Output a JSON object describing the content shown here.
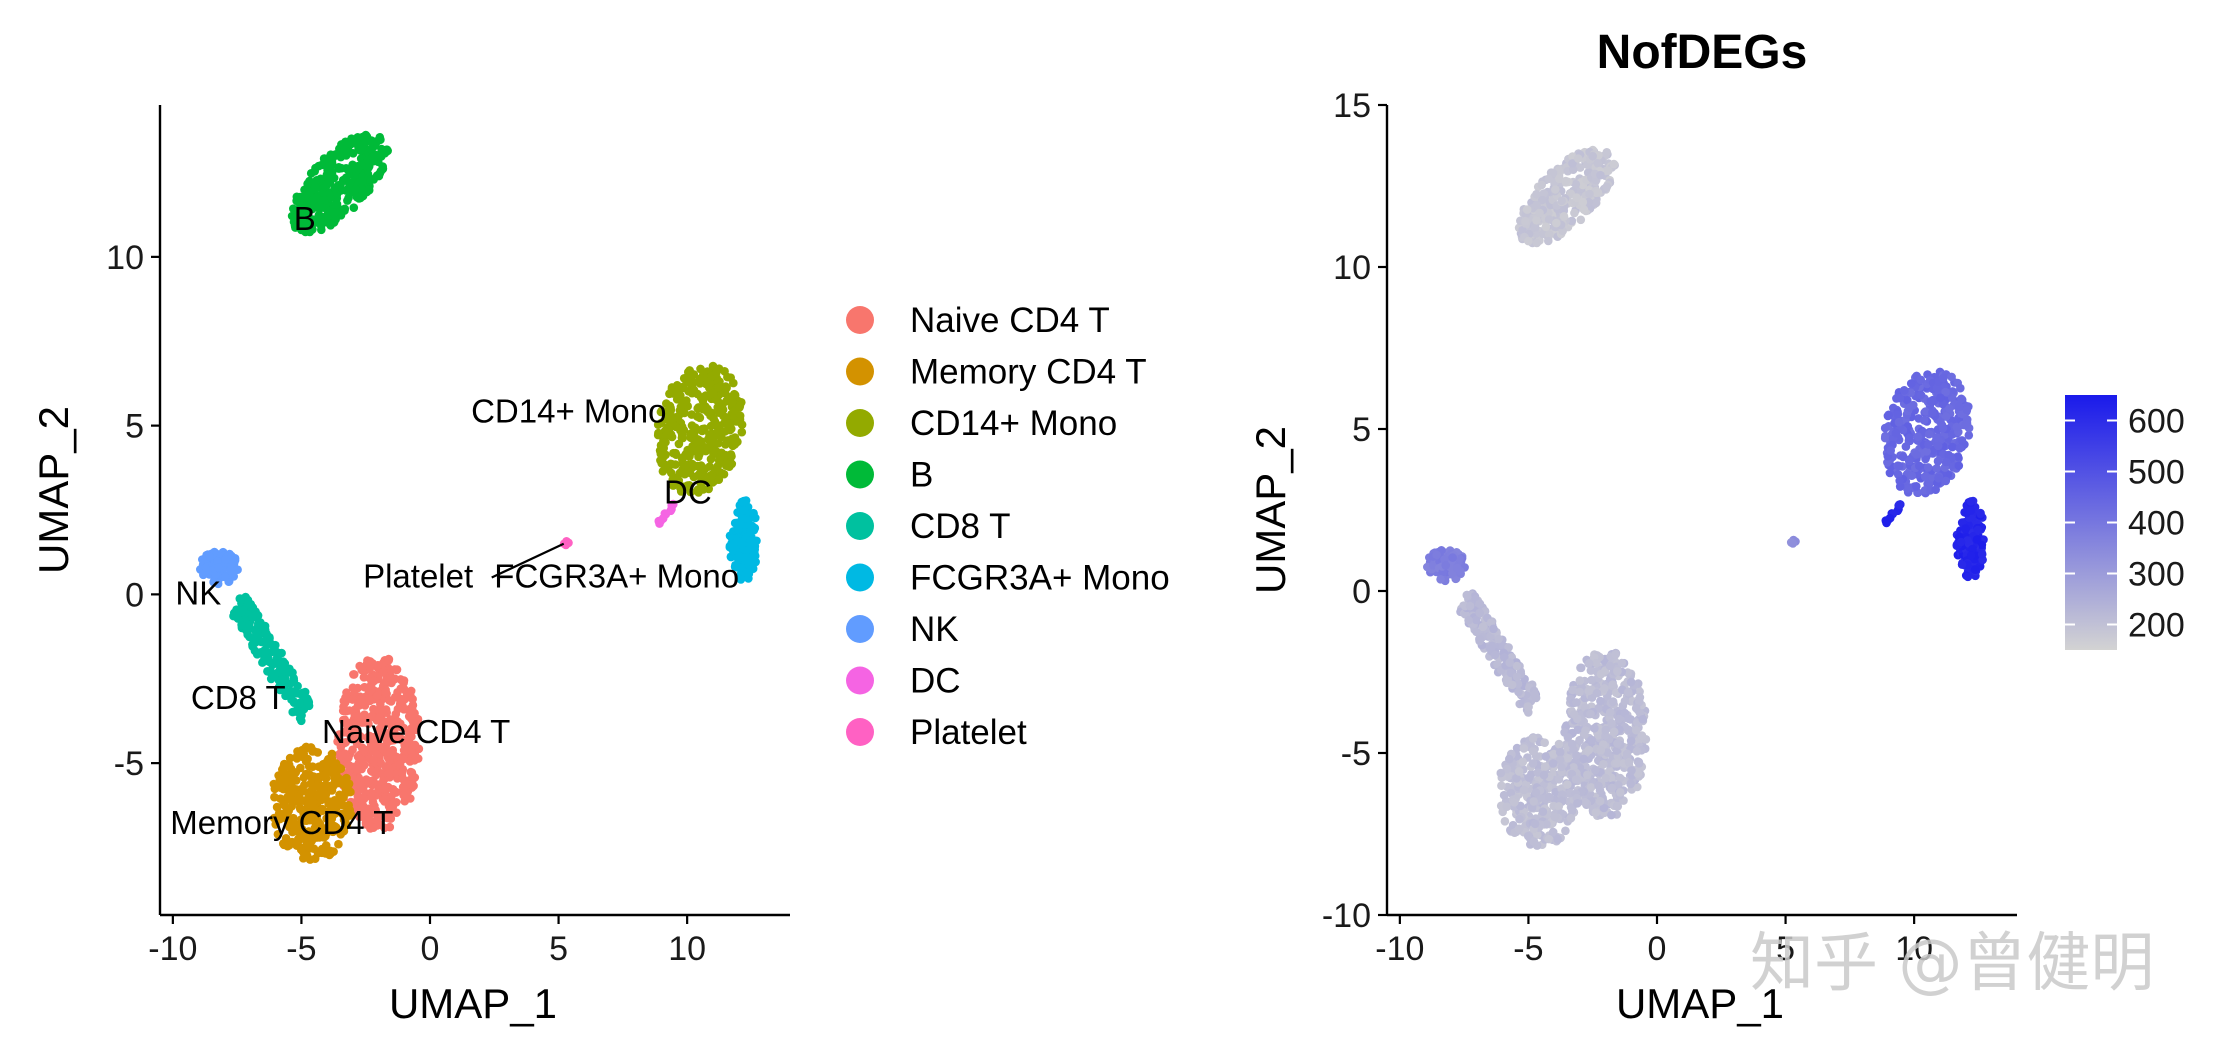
{
  "chart_data": [
    {
      "type": "scatter",
      "title": "",
      "xlabel": "UMAP_1",
      "ylabel": "UMAP_2",
      "xlim": [
        -10.5,
        14
      ],
      "ylim": [
        -9.5,
        14.5
      ],
      "xticks": [
        -10,
        -5,
        0,
        5,
        10
      ],
      "xtick_labels": [
        "-10",
        "-5",
        "0",
        "5",
        "10"
      ],
      "yticks": [
        -5,
        0,
        5,
        10
      ],
      "ytick_labels": [
        "-5",
        "0",
        "5",
        "10"
      ],
      "legend_position": "right",
      "legend": [
        {
          "label": "Naive CD4 T",
          "color": "#F8766D"
        },
        {
          "label": "Memory CD4 T",
          "color": "#D39200"
        },
        {
          "label": "CD14+ Mono",
          "color": "#93AA00"
        },
        {
          "label": "B",
          "color": "#00BA38"
        },
        {
          "label": "CD8 T",
          "color": "#00C19F"
        },
        {
          "label": "FCGR3A+ Mono",
          "color": "#00B9E3"
        },
        {
          "label": "NK",
          "color": "#619CFF"
        },
        {
          "label": "DC",
          "color": "#F564E3"
        },
        {
          "label": "Platelet",
          "color": "#FF61C3"
        }
      ],
      "clusters": [
        {
          "name": "Naive CD4 T",
          "label": "Naive CD4 T",
          "label_at": [
            -4.2,
            -4.4
          ],
          "shape": "ellipse",
          "center": [
            -2,
            -4.4
          ],
          "radius": [
            1.6,
            2.6
          ],
          "rotation": 0,
          "n": 520
        },
        {
          "name": "Memory CD4 T",
          "label": "Memory CD4 T",
          "label_at": [
            -10.1,
            -7.1
          ],
          "shape": "ellipse",
          "center": [
            -4.6,
            -6.2
          ],
          "radius": [
            1.6,
            1.7
          ],
          "rotation": 0,
          "n": 320
        },
        {
          "name": "CD14+ Mono",
          "label": "CD14+ Mono",
          "label_at": [
            1.6,
            5.1
          ],
          "shape": "ellipse",
          "center": [
            10.5,
            4.9
          ],
          "radius": [
            1.6,
            2.0
          ],
          "rotation": -25,
          "n": 340
        },
        {
          "name": "B",
          "label": "B",
          "label_at": [
            -5.3,
            10.8
          ],
          "shape": "ellipse",
          "center": [
            -3.5,
            12.2
          ],
          "radius": [
            2.2,
            0.95
          ],
          "rotation": 35,
          "n": 320
        },
        {
          "name": "CD8 T",
          "label": "CD8 T",
          "label_at": [
            -9.3,
            -3.4
          ],
          "shape": "line",
          "from": [
            -7.5,
            -0.2
          ],
          "to": [
            -4.8,
            -3.6
          ],
          "width": 0.8,
          "n": 170
        },
        {
          "name": "FCGR3A+ Mono",
          "label": "FCGR3A+ Mono",
          "label_at": [
            2.5,
            0.2
          ],
          "shape": "ellipse",
          "center": [
            12.2,
            1.6
          ],
          "radius": [
            0.55,
            1.2
          ],
          "rotation": 0,
          "n": 130
        },
        {
          "name": "NK",
          "label": "NK",
          "label_at": [
            -9.9,
            -0.3
          ],
          "shape": "ellipse",
          "center": [
            -8.2,
            0.8
          ],
          "radius": [
            0.75,
            0.5
          ],
          "rotation": 0,
          "n": 90
        },
        {
          "name": "DC",
          "label": "DC",
          "label_at": [
            9.1,
            2.7
          ],
          "shape": "line",
          "from": [
            8.9,
            2.1
          ],
          "to": [
            9.6,
            2.8
          ],
          "width": 0.15,
          "n": 14
        },
        {
          "name": "Platelet",
          "label": "Platelet",
          "label_at": [
            -2.6,
            0.2
          ],
          "shape": "ellipse",
          "center": [
            5.3,
            1.5
          ],
          "radius": [
            0.1,
            0.08
          ],
          "rotation": 0,
          "n": 4
        }
      ],
      "label_segment": {
        "from": [
          5.2,
          1.5
        ],
        "to": [
          2.4,
          0.5
        ]
      }
    },
    {
      "type": "scatter",
      "title": "NofDEGs",
      "xlabel": "UMAP_1",
      "ylabel": "UMAP_2",
      "xlim": [
        -10.5,
        14
      ],
      "ylim": [
        -10,
        15
      ],
      "xticks": [
        -10,
        -5,
        0,
        5,
        10
      ],
      "xtick_labels": [
        "-10",
        "-5",
        "0",
        "5",
        "10"
      ],
      "yticks": [
        -10,
        -5,
        0,
        5,
        10,
        15
      ],
      "ytick_labels": [
        "-10",
        "-5",
        "0",
        "5",
        "10",
        "15"
      ],
      "color_scale": {
        "min": 150,
        "max": 650,
        "low_color": "#D3D3D3",
        "high_color": "#1A1AEB"
      },
      "colorbar_ticks": [
        200,
        300,
        400,
        500,
        600
      ],
      "colorbar_labels": [
        "200",
        "300",
        "400",
        "500",
        "600"
      ],
      "cluster_values": {
        "Naive CD4 T": 210,
        "Memory CD4 T": 205,
        "CD14+ Mono": 440,
        "B": 185,
        "CD8 T": 220,
        "FCGR3A+ Mono": 620,
        "NK": 380,
        "DC": 620,
        "Platelet": 330
      }
    }
  ],
  "watermark": "知乎 @曾健明"
}
